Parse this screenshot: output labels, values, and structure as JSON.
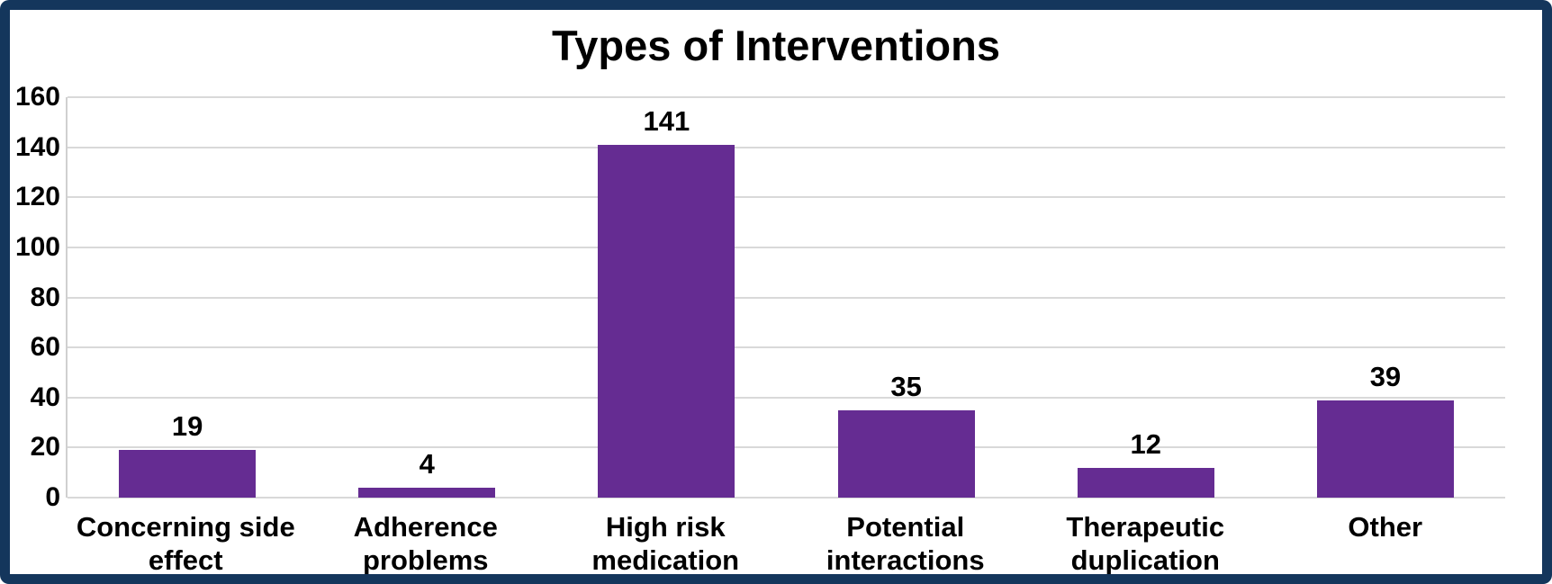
{
  "frame": {
    "border_color": "#14365c",
    "background": "#ffffff"
  },
  "chart_data": {
    "type": "bar",
    "title": "Types of Interventions",
    "categories": [
      "Concerning side effect",
      "Adherence problems",
      "High risk medication",
      "Potential interactions",
      "Therapeutic duplication",
      "Other"
    ],
    "category_lines": [
      [
        "Concerning side",
        "effect"
      ],
      [
        "Adherence",
        "problems"
      ],
      [
        "High risk",
        "medication"
      ],
      [
        "Potential",
        "interactions"
      ],
      [
        "Therapeutic",
        "duplication"
      ],
      [
        "Other"
      ]
    ],
    "values": [
      19,
      4,
      141,
      35,
      12,
      39
    ],
    "value_labels": [
      "19",
      "4",
      "141",
      "35",
      "12",
      "39"
    ],
    "xlabel": "",
    "ylabel": "",
    "ylim": [
      0,
      160
    ],
    "yticks": [
      0,
      20,
      40,
      60,
      80,
      100,
      120,
      140,
      160
    ],
    "grid": true,
    "legend_position": "none",
    "bar_color": "#652c92",
    "gridline_color": "#d9d9d9",
    "axis_line_color": "#d0d0d0",
    "text_color": "#000000"
  }
}
